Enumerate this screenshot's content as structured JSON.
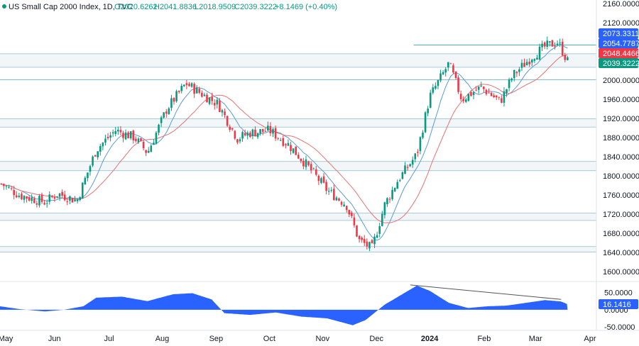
{
  "header": {
    "title": "US Small Cap 2000 Index, 1D, TVC",
    "open": "O2020.6262",
    "high": "H2041.8836",
    "low": "L2018.9509",
    "close": "C2039.3222",
    "change": "+8.1469 (+0.40%)"
  },
  "colors": {
    "up": "#089981",
    "down": "#f23645",
    "ma_fast": "#5b9bd5",
    "ma_slow": "#e57373",
    "zone": "#7eb6c9",
    "oscillator": "#2962ff",
    "tag_blue": "#2962ff",
    "tag_red": "#f23645",
    "tag_green": "#089981"
  },
  "price_axis": {
    "labels": [
      "2160.0000",
      "2120.0000",
      "2080.0000",
      "2040.0000",
      "2000.0000",
      "1960.0000",
      "1920.0000",
      "1880.0000",
      "1840.0000",
      "1800.0000",
      "1760.0000",
      "1720.0000",
      "1680.0000",
      "1640.0000",
      "1600.0000"
    ]
  },
  "price_tags": [
    {
      "label": "2073.3311",
      "value": 2073.3311,
      "color": "#2962ff"
    },
    {
      "label": "2054.7787",
      "value": 2054.7787,
      "color": "#2962ff"
    },
    {
      "label": "2048.4466",
      "value": 2048.4466,
      "color": "#f23645"
    },
    {
      "label": "2039.3222",
      "value": 2039.3222,
      "color": "#089981"
    }
  ],
  "oscillator": {
    "axis_labels": [
      "50.0000",
      "0.0000",
      "-50.0000"
    ],
    "tag": {
      "label": "16.1416",
      "value": 16.1416
    },
    "divergence_line": {
      "from": {
        "x": 2023.97,
        "y": 72
      },
      "to": {
        "x": 2024.205,
        "y": 30
      }
    }
  },
  "time_axis": {
    "labels": [
      "May",
      "Jun",
      "Jul",
      "Aug",
      "Sep",
      "Oct",
      "Nov",
      "Dec",
      "2024",
      "Feb",
      "Mar",
      "Apr"
    ]
  },
  "chart_data": {
    "type": "candlestick",
    "title": "US Small Cap 2000 Index, 1D, TVC",
    "ylim": [
      1590,
      2170
    ],
    "xlim": [
      2023.33,
      2024.26
    ],
    "support_resistance_levels": [
      2054.8,
      2027,
      2001,
      1919,
      1902,
      1830,
      1811,
      1722,
      1707,
      1652,
      1641
    ],
    "horizontal_ray": {
      "value": 2073.33,
      "from_x": 2023.975
    },
    "oscillator_ylim": [
      -60,
      80
    ],
    "close_path": [
      [
        2023.33,
        1785
      ],
      [
        2023.36,
        1760
      ],
      [
        2023.4,
        1745
      ],
      [
        2023.42,
        1763
      ],
      [
        2023.45,
        1748
      ],
      [
        2023.48,
        1855
      ],
      [
        2023.51,
        1895
      ],
      [
        2023.54,
        1880
      ],
      [
        2023.56,
        1848
      ],
      [
        2023.59,
        1940
      ],
      [
        2023.62,
        1993
      ],
      [
        2023.64,
        1975
      ],
      [
        2023.67,
        1950
      ],
      [
        2023.7,
        1878
      ],
      [
        2023.72,
        1890
      ],
      [
        2023.75,
        1895
      ],
      [
        2023.78,
        1865
      ],
      [
        2023.81,
        1820
      ],
      [
        2023.84,
        1770
      ],
      [
        2023.87,
        1740
      ],
      [
        2023.89,
        1665
      ],
      [
        2023.91,
        1648
      ],
      [
        2023.93,
        1740
      ],
      [
        2023.95,
        1790
      ],
      [
        2023.98,
        1845
      ],
      [
        2024.0,
        1965
      ],
      [
        2024.03,
        2035
      ],
      [
        2024.05,
        1960
      ],
      [
        2024.08,
        1985
      ],
      [
        2024.11,
        1955
      ],
      [
        2024.13,
        2010
      ],
      [
        2024.16,
        2050
      ],
      [
        2024.18,
        2070
      ],
      [
        2024.2,
        2080
      ],
      [
        2024.215,
        2039
      ]
    ],
    "oscillator_path": [
      [
        2023.33,
        10
      ],
      [
        2023.36,
        2
      ],
      [
        2023.4,
        -5
      ],
      [
        2023.43,
        0
      ],
      [
        2023.46,
        10
      ],
      [
        2023.48,
        35
      ],
      [
        2023.52,
        38
      ],
      [
        2023.56,
        25
      ],
      [
        2023.6,
        45
      ],
      [
        2023.63,
        48
      ],
      [
        2023.66,
        30
      ],
      [
        2023.68,
        -10
      ],
      [
        2023.72,
        -15
      ],
      [
        2023.76,
        -8
      ],
      [
        2023.8,
        -20
      ],
      [
        2023.84,
        -25
      ],
      [
        2023.88,
        -45
      ],
      [
        2023.9,
        -30
      ],
      [
        2023.93,
        15
      ],
      [
        2023.96,
        48
      ],
      [
        2023.98,
        70
      ],
      [
        2024.0,
        55
      ],
      [
        2024.03,
        20
      ],
      [
        2024.06,
        5
      ],
      [
        2024.09,
        10
      ],
      [
        2024.12,
        12
      ],
      [
        2024.15,
        20
      ],
      [
        2024.18,
        28
      ],
      [
        2024.205,
        24
      ],
      [
        2024.215,
        16
      ]
    ]
  }
}
